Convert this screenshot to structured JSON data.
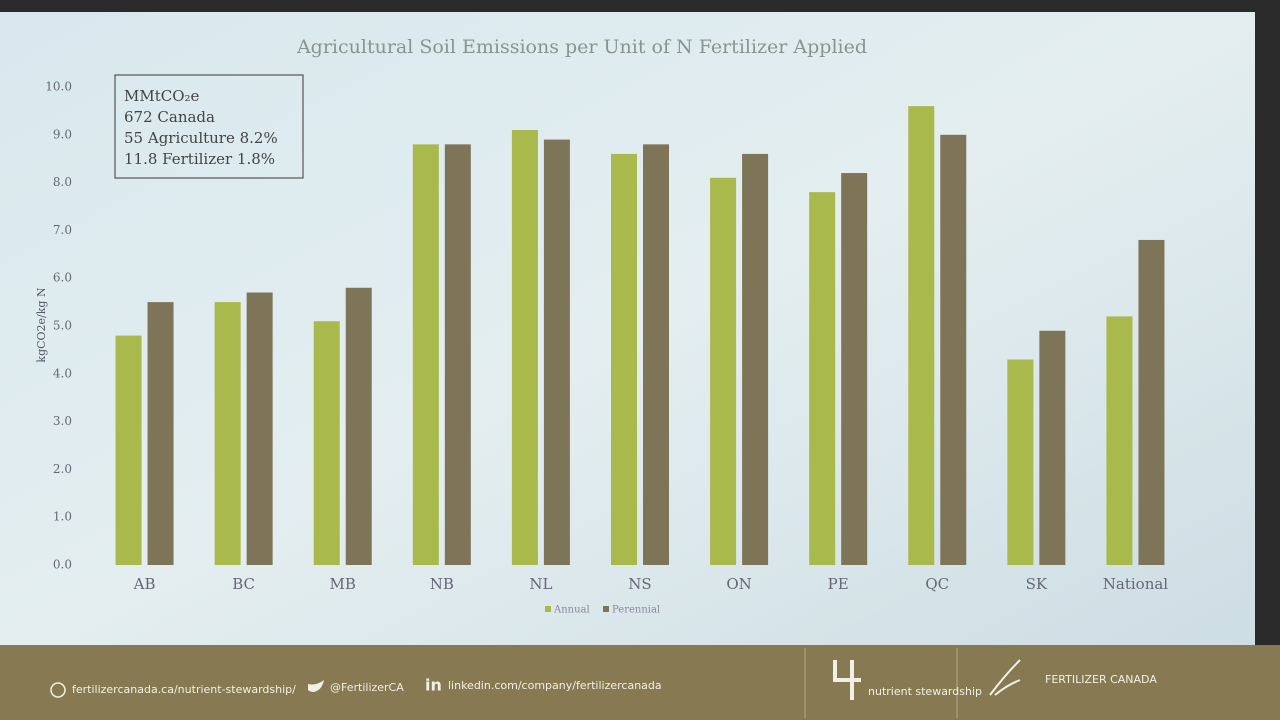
{
  "chart_data": {
    "type": "bar",
    "title": "Agricultural Soil Emissions per Unit of  N Fertilizer Applied",
    "y_label": "kgCO2e/kg N",
    "categories": [
      "AB",
      "BC",
      "MB",
      "NB",
      "NL",
      "NS",
      "ON",
      "PE",
      "QC",
      "SK",
      "National"
    ],
    "series": [
      {
        "name": "Annual",
        "color": "#a9b94c",
        "values": [
          4.8,
          5.5,
          5.1,
          8.8,
          9.1,
          8.6,
          8.1,
          7.8,
          9.6,
          4.3,
          5.2
        ]
      },
      {
        "name": "Perennial",
        "color": "#7e7559",
        "values": [
          5.5,
          5.7,
          5.8,
          8.8,
          8.9,
          8.8,
          8.6,
          8.2,
          9.0,
          4.9,
          6.8
        ]
      }
    ],
    "ylim": [
      0,
      10
    ],
    "yticks": [
      {
        "value": 0,
        "label": "0.0"
      },
      {
        "value": 1,
        "label": "1.0"
      },
      {
        "value": 2,
        "label": "2.0"
      },
      {
        "value": 3,
        "label": "3.0"
      },
      {
        "value": 4,
        "label": "4.0"
      },
      {
        "value": 5,
        "label": "5.0"
      },
      {
        "value": 6,
        "label": "6.0"
      },
      {
        "value": 7,
        "label": "7.0"
      },
      {
        "value": 8,
        "label": "8.0"
      },
      {
        "value": 9,
        "label": "9.0"
      },
      {
        "value": 10,
        "label": "10.0"
      }
    ],
    "grid": false,
    "legend": "bottom",
    "annotations": [
      "MMtCO₂e",
      "672 Canada",
      "55 Agriculture 8.2%",
      "11.8 Fertilizer  1.8%"
    ]
  },
  "footer": {
    "website": "fertilizercanada.ca/nutrient-stewardship/",
    "twitter": "@FertilizerCA",
    "linkedin": "linkedin.com/company/fertilizercanada",
    "stewardship_logo": "nutrient stewardship",
    "brand": "FERTILIZER CANADA"
  }
}
